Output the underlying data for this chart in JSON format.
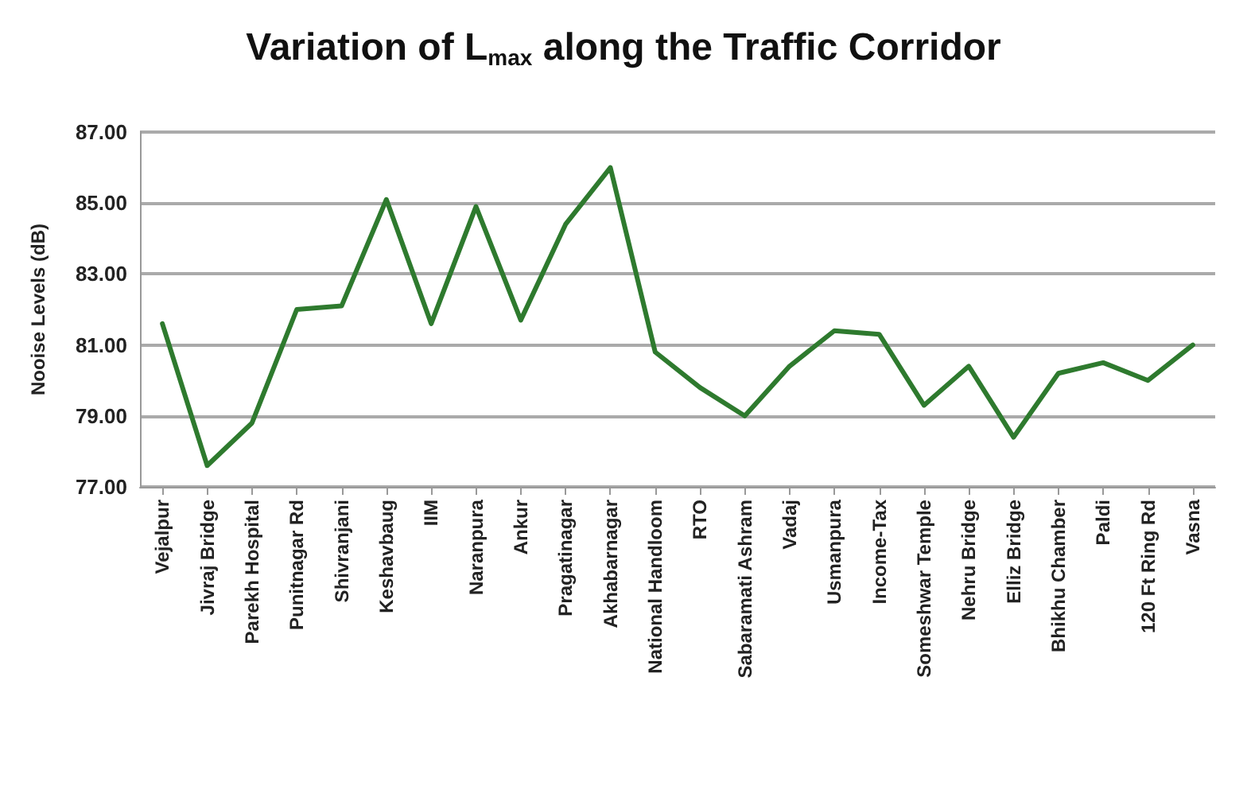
{
  "chart_data": {
    "type": "line",
    "title": "Variation of L$_{max}$ along the Traffic Corridor",
    "ylabel": "Nooise Levels (dB)",
    "categories": [
      "Vejalpur",
      "Jivraj Bridge",
      "Parekh Hospital",
      "Punitnagar Rd",
      "Shivranjani",
      "Keshavbaug",
      "IIM",
      "Naranpura",
      "Ankur",
      "Pragatinagar",
      "Akhabarnagar",
      "National Handloom",
      "RTO",
      "Sabaramati Ashram",
      "Vadaj",
      "Usmanpura",
      "Income-Tax",
      "Someshwar Temple",
      "Nehru Bridge",
      "Elliz Bridge",
      "Bhikhu Chamber",
      "Paldi",
      "120 Ft Ring Rd",
      "Vasna"
    ],
    "series": [
      {
        "color": "#2e7a2e",
        "values": [
          81.6,
          77.6,
          78.8,
          82.0,
          82.1,
          85.1,
          81.6,
          84.9,
          81.7,
          84.4,
          86.0,
          80.8,
          79.8,
          79.0,
          80.4,
          81.4,
          81.3,
          79.3,
          80.4,
          78.4,
          80.2,
          80.5,
          80.0,
          81.0
        ]
      }
    ],
    "ylim": [
      77,
      87
    ],
    "yticks": [
      {
        "value": 77,
        "label": "77.00"
      },
      {
        "value": 79,
        "label": "79.00"
      },
      {
        "value": 81,
        "label": "81.00"
      },
      {
        "value": 83,
        "label": "83.00"
      },
      {
        "value": 85,
        "label": "85.00"
      },
      {
        "value": 87,
        "label": "87.00"
      }
    ],
    "grid": "y",
    "marker": "none",
    "line_style": "solid"
  }
}
